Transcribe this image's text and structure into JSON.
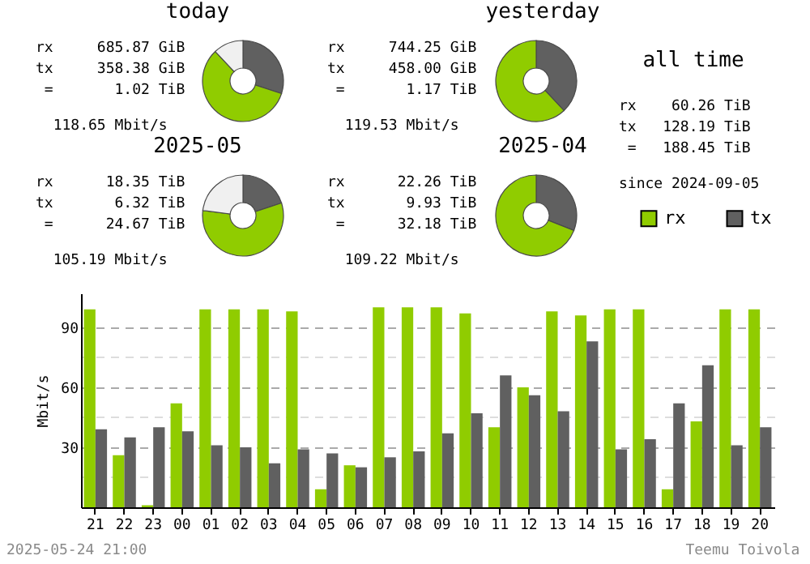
{
  "chart_data": [
    {
      "type": "donut",
      "title": "today",
      "categories": [
        null,
        null,
        null
      ],
      "values": [
        30,
        58,
        12
      ],
      "colors": [
        "#606060",
        "#90cc00",
        "#f0f0f0"
      ],
      "annotations": [
        "rx     685.87 GiB",
        "tx     358.38 GiB",
        " =       1.02 TiB",
        "  118.65 Mbit/s"
      ]
    },
    {
      "type": "donut",
      "title": "yesterday",
      "categories": [
        null,
        null
      ],
      "values": [
        38,
        62
      ],
      "colors": [
        "#606060",
        "#90cc00"
      ],
      "annotations": [
        "rx     744.25 GiB",
        "tx     458.00 GiB",
        " =       1.17 TiB",
        "  119.53 Mbit/s"
      ]
    },
    {
      "type": "other",
      "title": "all time",
      "annotations": [
        "rx    60.26 TiB",
        "tx   128.19 TiB",
        " =   188.45 TiB",
        "since 2024-09-05"
      ]
    },
    {
      "type": "donut",
      "title": "2025-05",
      "categories": [
        null,
        null,
        null
      ],
      "values": [
        20,
        57,
        23
      ],
      "colors": [
        "#606060",
        "#90cc00",
        "#f0f0f0"
      ],
      "annotations": [
        "rx      18.35 TiB",
        "tx       6.32 TiB",
        " =      24.67 TiB",
        "  105.19 Mbit/s"
      ]
    },
    {
      "type": "donut",
      "title": "2025-04",
      "categories": [
        null,
        null
      ],
      "values": [
        31,
        69
      ],
      "colors": [
        "#606060",
        "#90cc00"
      ],
      "annotations": [
        "rx      22.26 TiB",
        "tx       9.93 TiB",
        " =      32.18 TiB",
        "  109.22 Mbit/s"
      ]
    },
    {
      "type": "bar",
      "ylabel": "Mbit/s",
      "categories": [
        "21",
        "22",
        "23",
        "00",
        "01",
        "02",
        "03",
        "04",
        "05",
        "06",
        "07",
        "08",
        "09",
        "10",
        "11",
        "12",
        "13",
        "14",
        "15",
        "16",
        "17",
        "18",
        "19",
        "20"
      ],
      "series": [
        {
          "name": "rx",
          "color": "#90cc00",
          "values": [
            99,
            26,
            1,
            52,
            99,
            99,
            99,
            98,
            9,
            21,
            100,
            100,
            100,
            97,
            40,
            60,
            98,
            96,
            99,
            99,
            9,
            43,
            99,
            99
          ]
        },
        {
          "name": "tx",
          "color": "#606060",
          "values": [
            39,
            35,
            40,
            38,
            31,
            30,
            22,
            29,
            27,
            20,
            25,
            28,
            37,
            47,
            66,
            56,
            48,
            83,
            29,
            34,
            52,
            71,
            31,
            40
          ]
        }
      ],
      "ylim": [
        0,
        107
      ],
      "yticks": [
        {
          "value": 15,
          "label": null
        },
        30,
        {
          "value": 45,
          "label": null
        },
        60,
        {
          "value": 75,
          "label": null
        },
        90
      ],
      "grid": "y",
      "legend": "top right",
      "annotations": [
        "2025-05-24 21:00",
        "Teemu Toivola"
      ]
    }
  ]
}
